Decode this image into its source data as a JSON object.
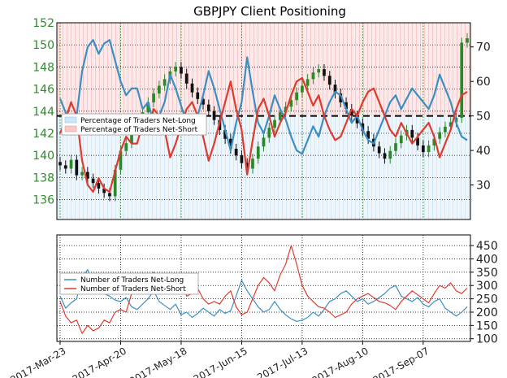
{
  "chart_data": {
    "title": "GBPJPY Client Positioning",
    "type": "line",
    "x_tick_labels": [
      "2017-Mar-23",
      "2017-Apr-20",
      "2017-May-18",
      "2017-Jun-15",
      "2017-Jul-13",
      "2017-Aug-10",
      "2017-Sep-07"
    ],
    "panels": [
      {
        "name": "top",
        "price_axis": {
          "ticks": [
            136,
            138,
            140,
            142,
            144,
            146,
            148,
            150,
            152
          ],
          "range": [
            134.2,
            152
          ]
        },
        "percent_axis": {
          "ticks": [
            30,
            40,
            50,
            60,
            70
          ],
          "range": [
            20,
            77
          ],
          "reference_line": 50
        },
        "legend": [
          "Percentage of Traders Net-Long",
          "Percentage of Traders Net-Short"
        ],
        "legend_position": "middle-left",
        "price_closes": [
          139.1,
          138.8,
          139.6,
          138.2,
          138.5,
          137.9,
          137.5,
          137.0,
          136.6,
          136.3,
          138.7,
          140.4,
          141.1,
          142.3,
          143.2,
          143.9,
          144.8,
          145.6,
          146.3,
          146.9,
          147.6,
          148.0,
          147.4,
          146.5,
          145.7,
          145.1,
          144.6,
          144.0,
          143.2,
          142.3,
          141.5,
          140.6,
          140.0,
          139.3,
          138.8,
          139.7,
          140.8,
          141.6,
          142.5,
          143.2,
          143.9,
          144.4,
          145.0,
          145.7,
          146.3,
          146.9,
          147.5,
          147.8,
          147.2,
          146.4,
          145.6,
          144.8,
          144.2,
          143.6,
          142.9,
          142.2,
          141.5,
          140.8,
          140.2,
          139.7,
          140.4,
          141.1,
          141.8,
          142.3,
          141.6,
          140.9,
          140.3,
          140.9,
          141.5,
          142.1,
          142.6,
          143.0,
          143.4,
          150.2,
          150.6
        ],
        "net_long_pct": [
          55,
          51,
          46,
          50,
          63,
          70,
          72,
          68,
          71,
          72,
          66,
          60,
          56,
          58,
          58,
          52,
          54,
          48,
          50,
          54,
          62,
          58,
          53,
          48,
          46,
          50,
          56,
          63,
          58,
          52,
          46,
          40,
          48,
          54,
          67,
          57,
          48,
          45,
          50,
          56,
          52,
          49,
          44,
          40,
          39,
          43,
          47,
          44,
          50,
          54,
          57,
          56,
          52,
          48,
          50,
          46,
          43,
          42,
          46,
          50,
          54,
          56,
          52,
          55,
          58,
          56,
          54,
          52,
          56,
          62,
          58,
          54,
          48,
          44,
          43
        ],
        "net_short_pct": [
          45,
          49,
          54,
          50,
          37,
          30,
          28,
          32,
          29,
          28,
          34,
          40,
          44,
          42,
          42,
          48,
          46,
          52,
          50,
          46,
          38,
          42,
          47,
          52,
          54,
          50,
          44,
          37,
          42,
          48,
          54,
          60,
          52,
          46,
          33,
          43,
          52,
          55,
          50,
          44,
          48,
          51,
          56,
          60,
          61,
          57,
          53,
          56,
          50,
          46,
          43,
          44,
          48,
          52,
          50,
          54,
          57,
          58,
          54,
          50,
          46,
          44,
          48,
          45,
          42,
          44,
          46,
          48,
          44,
          38,
          42,
          46,
          52,
          56,
          57
        ],
        "colors": {
          "net_long": "#3b8fc4",
          "net_short": "#e03a2e",
          "price_up": "#2a8a2a",
          "price_down": "#111111"
        }
      },
      {
        "name": "bottom",
        "count_axis": {
          "ticks": [
            100,
            150,
            200,
            250,
            300,
            350,
            400,
            450
          ],
          "range": [
            90,
            490
          ]
        },
        "legend": [
          "Number of Traders Net-Long",
          "Number of Traders Net-Short"
        ],
        "legend_position": "top-left",
        "net_long_count": [
          260,
          215,
          235,
          250,
          330,
          360,
          300,
          310,
          270,
          260,
          245,
          240,
          255,
          220,
          210,
          230,
          250,
          280,
          240,
          225,
          210,
          230,
          190,
          200,
          180,
          195,
          215,
          200,
          185,
          210,
          195,
          205,
          260,
          320,
          280,
          250,
          220,
          200,
          210,
          240,
          210,
          190,
          175,
          165,
          170,
          180,
          200,
          185,
          210,
          240,
          250,
          270,
          280,
          260,
          240,
          250,
          230,
          240,
          255,
          270,
          290,
          300,
          260,
          250,
          240,
          255,
          230,
          220,
          240,
          250,
          215,
          200,
          185,
          200,
          220
        ],
        "net_short_count": [
          240,
          185,
          160,
          170,
          120,
          150,
          130,
          140,
          170,
          160,
          200,
          210,
          200,
          270,
          300,
          320,
          330,
          350,
          290,
          310,
          340,
          320,
          330,
          260,
          270,
          290,
          250,
          230,
          240,
          230,
          260,
          280,
          220,
          190,
          200,
          250,
          300,
          330,
          310,
          280,
          340,
          380,
          450,
          380,
          300,
          260,
          240,
          220,
          215,
          200,
          180,
          190,
          200,
          230,
          250,
          260,
          270,
          255,
          240,
          235,
          225,
          210,
          240,
          260,
          280,
          265,
          250,
          235,
          270,
          300,
          290,
          310,
          280,
          270,
          290
        ],
        "colors": {
          "net_long": "#3b8fc4",
          "net_short": "#e03a2e"
        }
      }
    ]
  }
}
